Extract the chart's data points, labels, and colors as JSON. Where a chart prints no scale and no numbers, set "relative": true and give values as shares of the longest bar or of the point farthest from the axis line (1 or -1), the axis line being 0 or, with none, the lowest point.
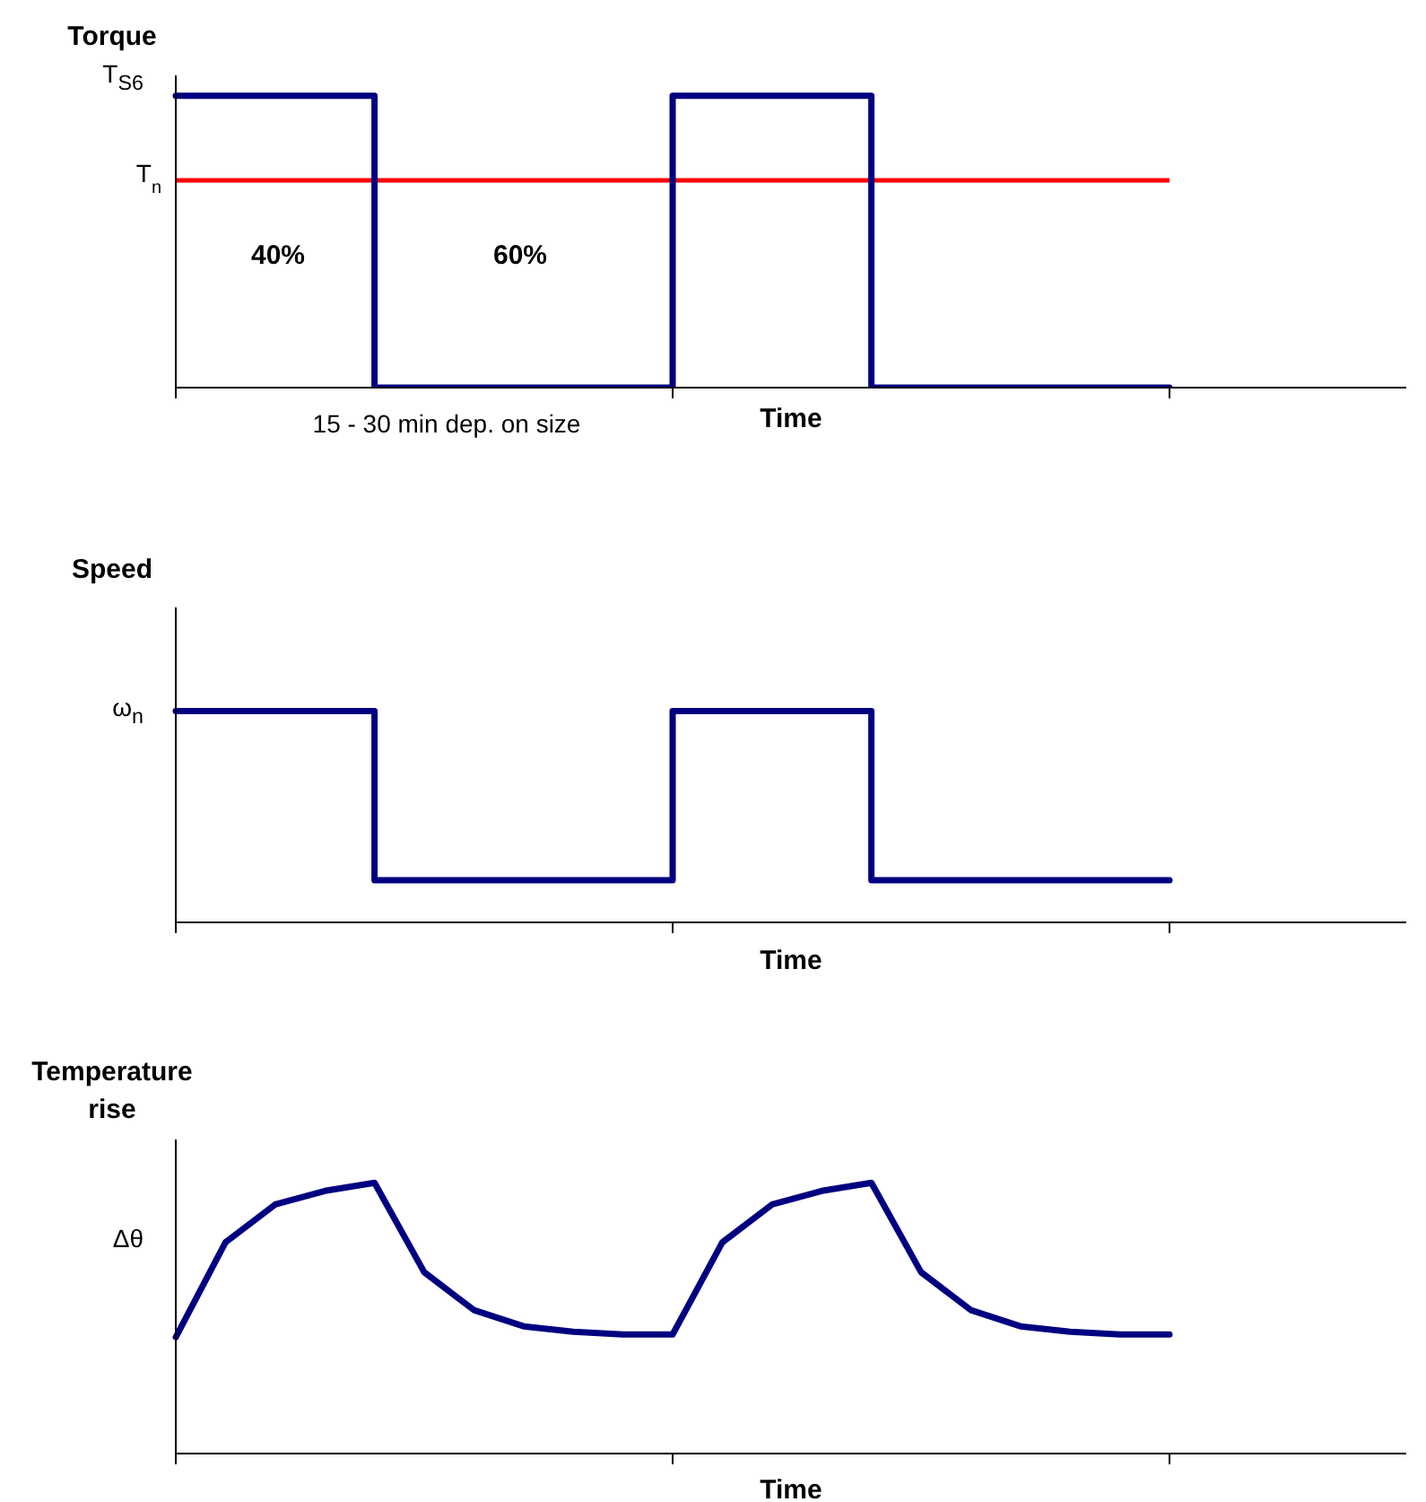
{
  "chart_data": [
    {
      "type": "step",
      "ylabel": "Torque",
      "xlabel": "Time",
      "relative": true,
      "categories": [
        null,
        null,
        null,
        null,
        null,
        null,
        null,
        null,
        null,
        null,
        null
      ],
      "series": [
        {
          "color": "#000080",
          "values": [
            1,
            1,
            0,
            0,
            0,
            1,
            1,
            0,
            0,
            0,
            0
          ]
        }
      ],
      "ref_lines": [
        {
          "axis": "y",
          "value": 0.71,
          "label": "T$_{n}$",
          "color": "#ff0000"
        }
      ],
      "annotations": [
        "40%",
        "60%",
        "15 - 30 min dep. on size",
        "T$_{S6}$"
      ],
      "grid": false,
      "legend": false,
      "marker": "none",
      "line_style": "solid"
    },
    {
      "type": "step",
      "ylabel": "Speed",
      "xlabel": "Time",
      "relative": true,
      "categories": [
        null,
        null,
        null,
        null,
        null,
        null,
        null,
        null,
        null,
        null,
        null
      ],
      "series": [
        {
          "color": "#000080",
          "values": [
            1,
            1,
            0.2,
            0.2,
            0.2,
            1,
            1,
            0.2,
            0.2,
            0.2,
            0.2
          ]
        }
      ],
      "annotations": [
        "ω$_{n}$"
      ],
      "grid": false,
      "legend": false,
      "marker": "none",
      "line_style": "solid"
    },
    {
      "type": "line",
      "ylabel": "Temperature rise",
      "xlabel": "Time",
      "relative": true,
      "categories": [
        null,
        null,
        null,
        null,
        null,
        null,
        null,
        null,
        null,
        null,
        null,
        null,
        null,
        null,
        null,
        null,
        null,
        null,
        null,
        null,
        null
      ],
      "series": [
        {
          "color": "#000080",
          "values": [
            0.43,
            0.78,
            0.92,
            0.97,
            1,
            0.67,
            0.53,
            0.47,
            0.45,
            0.44,
            0.44,
            0.78,
            0.92,
            0.97,
            1,
            0.67,
            0.53,
            0.47,
            0.45,
            0.44,
            0.44
          ]
        }
      ],
      "annotations": [
        "Δθ"
      ],
      "grid": false,
      "legend": false,
      "marker": "none",
      "line_style": "solid"
    }
  ]
}
